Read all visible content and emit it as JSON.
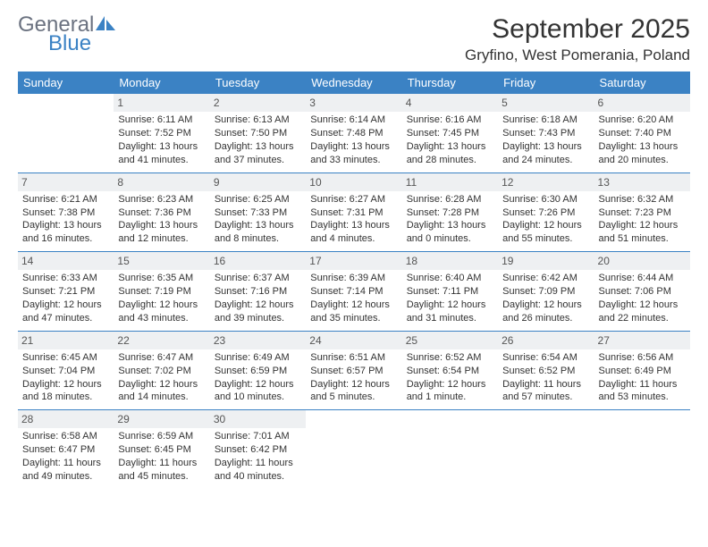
{
  "brand": {
    "general": "General",
    "blue": "Blue",
    "icon_color": "#3b82c4",
    "general_color": "#6b7280"
  },
  "title": "September 2025",
  "location": "Gryfino, West Pomerania, Poland",
  "colors": {
    "header_bg": "#3b82c4",
    "header_text": "#ffffff",
    "daynum_bg": "#eef0f2",
    "daynum_text": "#555555",
    "divider": "#3b82c4",
    "body_text": "#333333"
  },
  "typography": {
    "title_fontsize": 30,
    "location_fontsize": 17,
    "header_fontsize": 13,
    "cell_fontsize": 11,
    "daynum_fontsize": 12
  },
  "weekdays": [
    "Sunday",
    "Monday",
    "Tuesday",
    "Wednesday",
    "Thursday",
    "Friday",
    "Saturday"
  ],
  "weeks": [
    [
      null,
      {
        "n": "1",
        "sunrise": "Sunrise: 6:11 AM",
        "sunset": "Sunset: 7:52 PM",
        "daylight": "Daylight: 13 hours and 41 minutes."
      },
      {
        "n": "2",
        "sunrise": "Sunrise: 6:13 AM",
        "sunset": "Sunset: 7:50 PM",
        "daylight": "Daylight: 13 hours and 37 minutes."
      },
      {
        "n": "3",
        "sunrise": "Sunrise: 6:14 AM",
        "sunset": "Sunset: 7:48 PM",
        "daylight": "Daylight: 13 hours and 33 minutes."
      },
      {
        "n": "4",
        "sunrise": "Sunrise: 6:16 AM",
        "sunset": "Sunset: 7:45 PM",
        "daylight": "Daylight: 13 hours and 28 minutes."
      },
      {
        "n": "5",
        "sunrise": "Sunrise: 6:18 AM",
        "sunset": "Sunset: 7:43 PM",
        "daylight": "Daylight: 13 hours and 24 minutes."
      },
      {
        "n": "6",
        "sunrise": "Sunrise: 6:20 AM",
        "sunset": "Sunset: 7:40 PM",
        "daylight": "Daylight: 13 hours and 20 minutes."
      }
    ],
    [
      {
        "n": "7",
        "sunrise": "Sunrise: 6:21 AM",
        "sunset": "Sunset: 7:38 PM",
        "daylight": "Daylight: 13 hours and 16 minutes."
      },
      {
        "n": "8",
        "sunrise": "Sunrise: 6:23 AM",
        "sunset": "Sunset: 7:36 PM",
        "daylight": "Daylight: 13 hours and 12 minutes."
      },
      {
        "n": "9",
        "sunrise": "Sunrise: 6:25 AM",
        "sunset": "Sunset: 7:33 PM",
        "daylight": "Daylight: 13 hours and 8 minutes."
      },
      {
        "n": "10",
        "sunrise": "Sunrise: 6:27 AM",
        "sunset": "Sunset: 7:31 PM",
        "daylight": "Daylight: 13 hours and 4 minutes."
      },
      {
        "n": "11",
        "sunrise": "Sunrise: 6:28 AM",
        "sunset": "Sunset: 7:28 PM",
        "daylight": "Daylight: 13 hours and 0 minutes."
      },
      {
        "n": "12",
        "sunrise": "Sunrise: 6:30 AM",
        "sunset": "Sunset: 7:26 PM",
        "daylight": "Daylight: 12 hours and 55 minutes."
      },
      {
        "n": "13",
        "sunrise": "Sunrise: 6:32 AM",
        "sunset": "Sunset: 7:23 PM",
        "daylight": "Daylight: 12 hours and 51 minutes."
      }
    ],
    [
      {
        "n": "14",
        "sunrise": "Sunrise: 6:33 AM",
        "sunset": "Sunset: 7:21 PM",
        "daylight": "Daylight: 12 hours and 47 minutes."
      },
      {
        "n": "15",
        "sunrise": "Sunrise: 6:35 AM",
        "sunset": "Sunset: 7:19 PM",
        "daylight": "Daylight: 12 hours and 43 minutes."
      },
      {
        "n": "16",
        "sunrise": "Sunrise: 6:37 AM",
        "sunset": "Sunset: 7:16 PM",
        "daylight": "Daylight: 12 hours and 39 minutes."
      },
      {
        "n": "17",
        "sunrise": "Sunrise: 6:39 AM",
        "sunset": "Sunset: 7:14 PM",
        "daylight": "Daylight: 12 hours and 35 minutes."
      },
      {
        "n": "18",
        "sunrise": "Sunrise: 6:40 AM",
        "sunset": "Sunset: 7:11 PM",
        "daylight": "Daylight: 12 hours and 31 minutes."
      },
      {
        "n": "19",
        "sunrise": "Sunrise: 6:42 AM",
        "sunset": "Sunset: 7:09 PM",
        "daylight": "Daylight: 12 hours and 26 minutes."
      },
      {
        "n": "20",
        "sunrise": "Sunrise: 6:44 AM",
        "sunset": "Sunset: 7:06 PM",
        "daylight": "Daylight: 12 hours and 22 minutes."
      }
    ],
    [
      {
        "n": "21",
        "sunrise": "Sunrise: 6:45 AM",
        "sunset": "Sunset: 7:04 PM",
        "daylight": "Daylight: 12 hours and 18 minutes."
      },
      {
        "n": "22",
        "sunrise": "Sunrise: 6:47 AM",
        "sunset": "Sunset: 7:02 PM",
        "daylight": "Daylight: 12 hours and 14 minutes."
      },
      {
        "n": "23",
        "sunrise": "Sunrise: 6:49 AM",
        "sunset": "Sunset: 6:59 PM",
        "daylight": "Daylight: 12 hours and 10 minutes."
      },
      {
        "n": "24",
        "sunrise": "Sunrise: 6:51 AM",
        "sunset": "Sunset: 6:57 PM",
        "daylight": "Daylight: 12 hours and 5 minutes."
      },
      {
        "n": "25",
        "sunrise": "Sunrise: 6:52 AM",
        "sunset": "Sunset: 6:54 PM",
        "daylight": "Daylight: 12 hours and 1 minute."
      },
      {
        "n": "26",
        "sunrise": "Sunrise: 6:54 AM",
        "sunset": "Sunset: 6:52 PM",
        "daylight": "Daylight: 11 hours and 57 minutes."
      },
      {
        "n": "27",
        "sunrise": "Sunrise: 6:56 AM",
        "sunset": "Sunset: 6:49 PM",
        "daylight": "Daylight: 11 hours and 53 minutes."
      }
    ],
    [
      {
        "n": "28",
        "sunrise": "Sunrise: 6:58 AM",
        "sunset": "Sunset: 6:47 PM",
        "daylight": "Daylight: 11 hours and 49 minutes."
      },
      {
        "n": "29",
        "sunrise": "Sunrise: 6:59 AM",
        "sunset": "Sunset: 6:45 PM",
        "daylight": "Daylight: 11 hours and 45 minutes."
      },
      {
        "n": "30",
        "sunrise": "Sunrise: 7:01 AM",
        "sunset": "Sunset: 6:42 PM",
        "daylight": "Daylight: 11 hours and 40 minutes."
      },
      null,
      null,
      null,
      null
    ]
  ]
}
